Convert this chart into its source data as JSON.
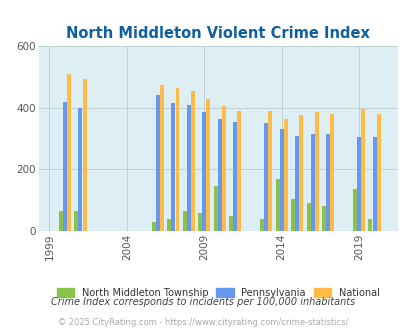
{
  "title": "North Middleton Violent Crime Index",
  "title_color": "#1060a0",
  "background_color": "#deeef5",
  "fig_background": "#ffffff",
  "years": [
    2000,
    2001,
    2006,
    2007,
    2008,
    2009,
    2010,
    2011,
    2013,
    2014,
    2015,
    2016,
    2017,
    2019,
    2020
  ],
  "north_middleton": [
    65,
    65,
    30,
    40,
    65,
    60,
    145,
    50,
    40,
    170,
    105,
    90,
    80,
    135,
    40
  ],
  "pennsylvania": [
    420,
    400,
    440,
    415,
    410,
    385,
    365,
    355,
    350,
    330,
    310,
    315,
    315,
    305,
    305
  ],
  "national": [
    510,
    495,
    475,
    465,
    455,
    430,
    405,
    390,
    390,
    365,
    375,
    385,
    380,
    395,
    380
  ],
  "bar_width": 0.27,
  "ylim": [
    0,
    600
  ],
  "yticks": [
    0,
    200,
    400,
    600
  ],
  "xtick_years": [
    1999,
    2004,
    2009,
    2014,
    2019
  ],
  "xlim_left": 1998.3,
  "xlim_right": 2021.5,
  "color_nm": "#8bc34a",
  "color_pa": "#6699ee",
  "color_nat": "#ffbb44",
  "legend_labels": [
    "North Middleton Township",
    "Pennsylvania",
    "National"
  ],
  "footnote1": "Crime Index corresponds to incidents per 100,000 inhabitants",
  "footnote2": "© 2025 CityRating.com - https://www.cityrating.com/crime-statistics/",
  "footnote1_color": "#444444",
  "footnote2_color": "#aaaaaa"
}
